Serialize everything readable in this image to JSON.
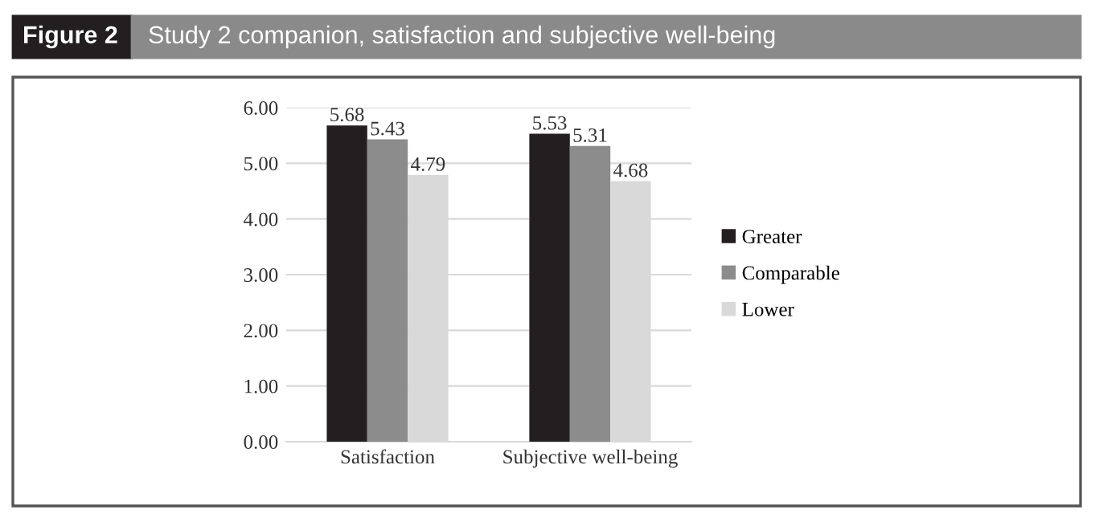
{
  "chart_data": {
    "type": "bar",
    "title": "Study 2 companion, satisfaction and subjective well-being",
    "annotations": [
      "Figure 2"
    ],
    "categories": [
      "Satisfaction",
      "Subjective well-being"
    ],
    "series": [
      {
        "name": "Greater",
        "color": "#231f20",
        "values": [
          5.68,
          5.53
        ]
      },
      {
        "name": "Comparable",
        "color": "#8c8c8c",
        "values": [
          5.43,
          5.31
        ]
      },
      {
        "name": "Lower",
        "color": "#d9d9d9",
        "values": [
          4.79,
          4.68
        ]
      }
    ],
    "ylim": [
      0,
      6
    ],
    "yticks": [
      {
        "value": 0,
        "label": "0.00"
      },
      {
        "value": 1,
        "label": "1.00"
      },
      {
        "value": 2,
        "label": "2.00"
      },
      {
        "value": 3,
        "label": "3.00"
      },
      {
        "value": 4,
        "label": "4.00"
      },
      {
        "value": 5,
        "label": "5.00"
      },
      {
        "value": 6,
        "label": "6.00"
      }
    ],
    "grid": "y",
    "legend": "right",
    "data_labels": true
  }
}
